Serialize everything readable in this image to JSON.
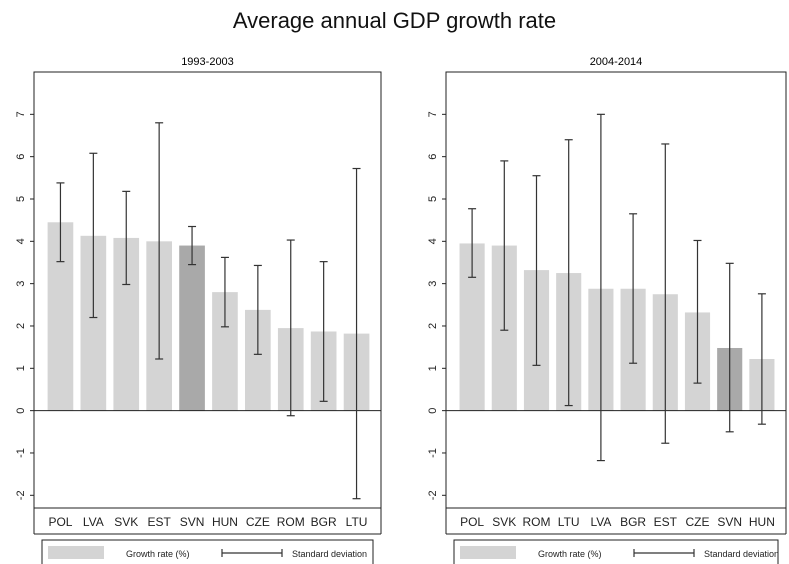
{
  "title": "Average annual GDP growth rate",
  "legend": {
    "growth_label": "Growth rate (%)",
    "sd_label": "Standard deviation"
  },
  "colors": {
    "bar": "#d4d4d4",
    "bar_highlight": "#a9a9a9",
    "axis": "#222222",
    "errorbar": "#333333"
  },
  "chart_data": [
    {
      "type": "bar",
      "title": "1993-2003",
      "categories": [
        "POL",
        "LVA",
        "SVK",
        "EST",
        "SVN",
        "HUN",
        "CZE",
        "ROM",
        "BGR",
        "LTU"
      ],
      "series": [
        {
          "name": "Growth rate (%)",
          "values": [
            4.45,
            4.13,
            4.08,
            4.0,
            3.9,
            2.8,
            2.38,
            1.95,
            1.87,
            1.82
          ]
        }
      ],
      "error_low": [
        3.52,
        2.2,
        2.98,
        1.22,
        3.45,
        1.98,
        1.33,
        -0.12,
        0.22,
        -2.08
      ],
      "error_high": [
        5.38,
        6.08,
        5.18,
        6.8,
        4.35,
        3.62,
        3.43,
        4.03,
        3.52,
        5.72
      ],
      "highlight": "SVN",
      "yticks": [
        -2,
        -1,
        0,
        1,
        2,
        3,
        4,
        5,
        6,
        7
      ],
      "ylim": [
        -2.3,
        8.0
      ],
      "grid": false
    },
    {
      "type": "bar",
      "title": "2004-2014",
      "categories": [
        "POL",
        "SVK",
        "ROM",
        "LTU",
        "LVA",
        "BGR",
        "EST",
        "CZE",
        "SVN",
        "HUN"
      ],
      "series": [
        {
          "name": "Growth rate (%)",
          "values": [
            3.95,
            3.9,
            3.32,
            3.25,
            2.88,
            2.88,
            2.75,
            2.32,
            1.48,
            1.22
          ]
        }
      ],
      "error_low": [
        3.15,
        1.9,
        1.07,
        0.12,
        -1.18,
        1.12,
        -0.77,
        0.65,
        -0.5,
        -0.32
      ],
      "error_high": [
        4.77,
        5.9,
        5.55,
        6.4,
        7.0,
        4.65,
        6.3,
        4.02,
        3.48,
        2.76
      ],
      "highlight": "SVN",
      "yticks": [
        -2,
        -1,
        0,
        1,
        2,
        3,
        4,
        5,
        6,
        7
      ],
      "ylim": [
        -2.3,
        8.0
      ],
      "grid": false
    }
  ]
}
